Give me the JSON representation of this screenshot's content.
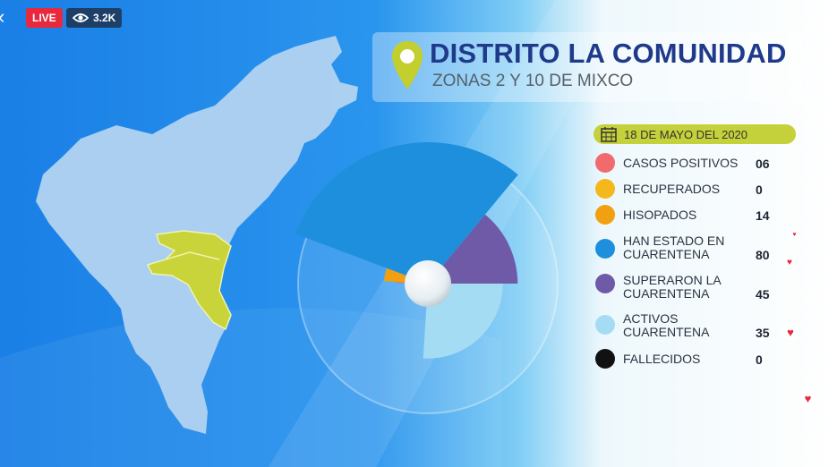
{
  "header": {
    "live_label": "LIVE",
    "views": "3.2K"
  },
  "title": "DISTRITO LA COMUNIDAD",
  "subtitle": "ZONAS 2 Y 10 DE MIXCO",
  "date": "18 DE MAYO DEL 2020",
  "chart_data": {
    "type": "pie",
    "title": "DISTRITO LA COMUNIDAD",
    "subtitle": "ZONAS 2 Y 10 DE MIXCO",
    "date": "18 DE MAYO DEL 2020",
    "categories": [
      "CASOS POSITIVOS",
      "RECUPERADOS",
      "HISOPADOS",
      "HAN ESTADO EN CUARENTENA",
      "SUPERARON LA CUARENTENA",
      "ACTIVOS CUARENTENA",
      "FALLECIDOS"
    ],
    "values": [
      6,
      0,
      14,
      80,
      45,
      35,
      0
    ],
    "colors": [
      "#f06a6e",
      "#f4b81c",
      "#f0a010",
      "#1d8fdc",
      "#6f5aa8",
      "#a4dcf4",
      "#111111"
    ],
    "legend_position": "right"
  },
  "legend": [
    {
      "label_line1": "CASOS POSITIVOS",
      "label_line2": "",
      "value": "06"
    },
    {
      "label_line1": "RECUPERADOS",
      "label_line2": "",
      "value": "0"
    },
    {
      "label_line1": "HISOPADOS",
      "label_line2": "",
      "value": "14"
    },
    {
      "label_line1": "HAN ESTADO EN",
      "label_line2": "CUARENTENA",
      "value": "80"
    },
    {
      "label_line1": "SUPERARON LA",
      "label_line2": "CUARENTENA",
      "value": "45"
    },
    {
      "label_line1": "ACTIVOS",
      "label_line2": "CUARENTENA",
      "value": "35"
    },
    {
      "label_line1": "FALLECIDOS",
      "label_line2": "",
      "value": "0"
    }
  ]
}
